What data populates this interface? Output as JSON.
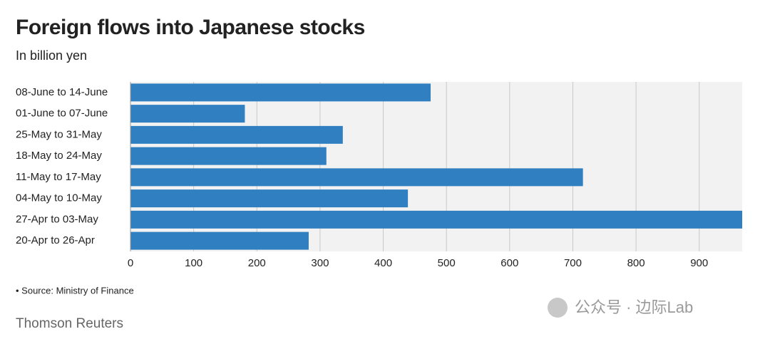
{
  "chart_data": {
    "type": "hbar",
    "title": "Foreign flows into Japanese stocks",
    "subtitle": "In billion yen",
    "categories": [
      "08-June to 14-June",
      "01-June to 07-June",
      "25-May to 31-May",
      "18-May to 24-May",
      "11-May to 17-May",
      "04-May to 10-May",
      "27-Apr to 03-May",
      "20-Apr to 26-Apr"
    ],
    "values": [
      475,
      181,
      336,
      310,
      716,
      439,
      968,
      282
    ],
    "color": "#2f7fc1",
    "xlim": [
      0,
      968
    ],
    "xticks": [
      0,
      100,
      200,
      300,
      400,
      500,
      600,
      700,
      800,
      900
    ],
    "grid": true,
    "source": "• Source: Ministry of Finance",
    "credit": "Thomson Reuters",
    "watermark": "公众号 · 边际Lab"
  }
}
